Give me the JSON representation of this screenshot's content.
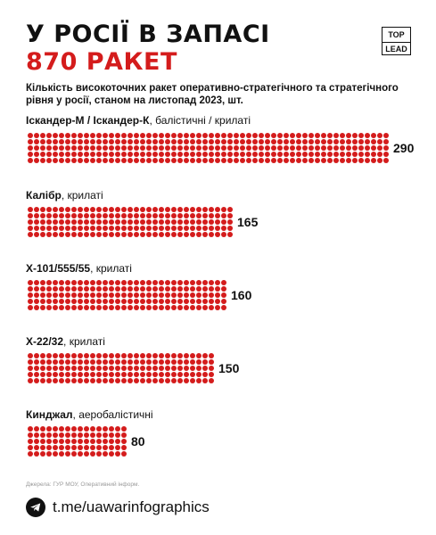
{
  "header": {
    "title_line1": "У РОСІЇ В ЗАПАСІ",
    "title_line2": "870 РАКЕТ",
    "logo_top": "TOP",
    "logo_bottom": "LEAD"
  },
  "colors": {
    "accent": "#d41c1c",
    "text": "#111111",
    "muted": "#9a9a9a"
  },
  "chart_data": {
    "type": "bar",
    "title": "Кількість високоточних ракет оперативно-стратегічного та стратегічного рівня у росії, станом на листопад 2023, шт.",
    "categories": [
      {
        "name": "Іскандер-М / Іскандер-К",
        "note": ", балістичні / крилаті"
      },
      {
        "name": "Калібр",
        "note": ", крилаті"
      },
      {
        "name": "Х-101/555/55",
        "note": ", крилаті"
      },
      {
        "name": "Х-22/32",
        "note": ", крилаті"
      },
      {
        "name": "Кинджал",
        "note": ", аеробалістичні"
      }
    ],
    "values": [
      290,
      165,
      160,
      150,
      80
    ]
  },
  "source": "Джерела: ГУР МОУ, Оперативний інформ.",
  "footer": {
    "link": "t.me/uawarinfographics",
    "icon": "telegram-icon"
  }
}
